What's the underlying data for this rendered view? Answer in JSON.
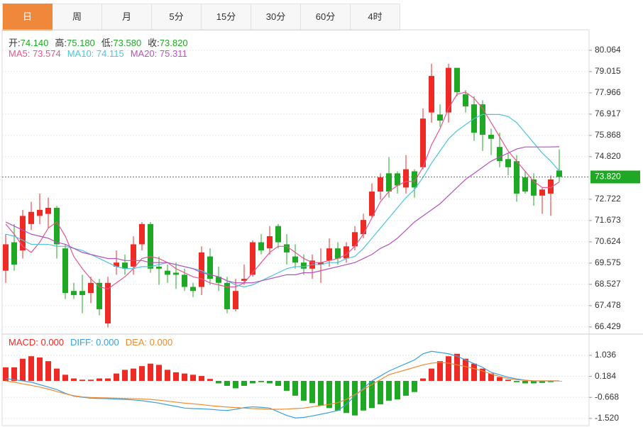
{
  "tabs": [
    "日",
    "周",
    "月",
    "5分",
    "15分",
    "30分",
    "60分",
    "4时"
  ],
  "active_tab": 0,
  "chart_data": [
    {
      "type": "candlestick",
      "info": [
        {
          "label": "开:",
          "value": "74.140"
        },
        {
          "label": "高:",
          "value": "75.180"
        },
        {
          "label": "低:",
          "value": "73.580"
        },
        {
          "label": "收:",
          "value": "73.820"
        }
      ],
      "up_color": "#ee2a24",
      "down_color": "#1fa823",
      "open": [
        69.2,
        70.6,
        70.2,
        71.5,
        71.9,
        72.0,
        72.3,
        70.3,
        68.2,
        68.2,
        68.1,
        68.6,
        66.6,
        69.4,
        69.6,
        69.4,
        70.5,
        71.5,
        69.4,
        69.2,
        69.1,
        69.0,
        68.4,
        68.4,
        69.9,
        68.9,
        68.6,
        67.3,
        68.7,
        69.0,
        70.6,
        70.3,
        71.4,
        70.5,
        69.9,
        69.6,
        69.3,
        69.5,
        69.7,
        70.3,
        69.8,
        70.4,
        71.0,
        71.9,
        73.1,
        74.0,
        74.0,
        73.3,
        74.1,
        74.3,
        77.0,
        76.9,
        77.0,
        79.2,
        77.9,
        77.4,
        77.4,
        75.9,
        75.3,
        74.7,
        74.6,
        73.8,
        73.7,
        72.9,
        73.0,
        74.14
      ],
      "high": [
        71.0,
        71.5,
        72.2,
        72.6,
        73.0,
        72.8,
        72.4,
        70.5,
        68.6,
        69.0,
        68.9,
        68.8,
        68.9,
        70.2,
        70.0,
        70.9,
        71.6,
        71.6,
        69.9,
        69.5,
        69.6,
        69.3,
        68.6,
        70.4,
        70.3,
        69.4,
        68.9,
        68.8,
        69.5,
        70.7,
        71.0,
        71.4,
        71.5,
        71.0,
        70.5,
        70.0,
        70.0,
        70.3,
        70.8,
        70.6,
        70.6,
        71.4,
        72.0,
        73.5,
        74.0,
        74.8,
        74.1,
        74.9,
        74.2,
        77.2,
        79.4,
        77.4,
        79.4,
        79.2,
        78.1,
        77.8,
        77.6,
        76.2,
        76.0,
        75.0,
        74.9,
        74.1,
        74.0,
        73.3,
        73.9,
        75.18
      ],
      "low": [
        68.6,
        69.2,
        69.8,
        71.2,
        71.5,
        71.3,
        69.8,
        67.8,
        67.8,
        67.1,
        67.6,
        67.0,
        66.4,
        69.0,
        69.0,
        69.0,
        70.2,
        69.1,
        68.5,
        68.6,
        68.3,
        68.2,
        67.9,
        68.0,
        68.5,
        68.2,
        67.1,
        67.2,
        68.5,
        68.9,
        70.0,
        70.0,
        70.3,
        69.5,
        69.3,
        69.0,
        68.8,
        68.6,
        69.4,
        69.5,
        69.6,
        70.2,
        70.8,
        71.8,
        72.7,
        72.8,
        73.0,
        73.0,
        72.8,
        74.2,
        76.5,
        76.3,
        76.5,
        77.8,
        77.0,
        75.6,
        75.1,
        74.9,
        74.3,
        73.9,
        72.6,
        73.0,
        72.4,
        72.0,
        71.9,
        73.58
      ],
      "close": [
        70.5,
        69.5,
        71.9,
        72.1,
        72.2,
        72.3,
        70.5,
        68.1,
        68.0,
        68.0,
        68.6,
        67.3,
        68.6,
        69.6,
        69.3,
        70.5,
        71.5,
        69.3,
        69.3,
        69.0,
        69.0,
        68.4,
        68.2,
        70.1,
        68.8,
        68.6,
        67.3,
        68.2,
        68.8,
        70.6,
        70.2,
        70.9,
        70.6,
        70.1,
        69.6,
        69.3,
        69.7,
        69.6,
        70.3,
        69.8,
        70.4,
        71.1,
        71.7,
        73.1,
        73.8,
        73.1,
        73.4,
        74.2,
        73.3,
        76.7,
        78.8,
        76.6,
        79.2,
        78.0,
        77.3,
        76.0,
        75.9,
        75.7,
        74.6,
        74.3,
        73.0,
        73.1,
        72.9,
        73.2,
        73.7,
        73.82
      ],
      "series": [
        {
          "name": "MA5: 73.574",
          "color": "#e8558c",
          "values": [
            71.5,
            71.0,
            70.4,
            70.1,
            70.6,
            71.3,
            71.6,
            70.9,
            69.9,
            69.3,
            68.8,
            68.4,
            68.3,
            68.6,
            68.9,
            69.3,
            69.8,
            69.9,
            69.8,
            69.6,
            69.3,
            69.1,
            68.9,
            68.8,
            68.6,
            68.5,
            68.4,
            68.4,
            68.6,
            69.1,
            69.6,
            70.1,
            70.4,
            70.4,
            70.1,
            69.8,
            69.6,
            69.6,
            69.7,
            69.8,
            70.0,
            70.4,
            71.0,
            71.8,
            72.6,
            73.1,
            73.4,
            73.6,
            73.6,
            74.3,
            75.4,
            76.2,
            77.2,
            77.9,
            78.0,
            77.7,
            77.2,
            76.5,
            75.8,
            75.1,
            74.6,
            74.1,
            73.6,
            73.3,
            73.3,
            73.574
          ]
        },
        {
          "name": "MA10: 74.115",
          "color": "#4cc4dc",
          "values": [
            71.0,
            70.9,
            70.7,
            70.5,
            70.5,
            70.5,
            70.4,
            70.4,
            70.3,
            70.2,
            70.0,
            69.8,
            69.6,
            69.4,
            69.3,
            69.3,
            69.4,
            69.4,
            69.5,
            69.6,
            69.5,
            69.4,
            69.3,
            69.2,
            69.0,
            68.9,
            68.7,
            68.5,
            68.4,
            68.5,
            68.7,
            68.9,
            69.1,
            69.3,
            69.4,
            69.4,
            69.5,
            69.5,
            69.6,
            69.6,
            69.8,
            69.9,
            70.3,
            70.8,
            71.3,
            71.8,
            72.3,
            72.8,
            73.2,
            73.8,
            74.5,
            75.1,
            75.7,
            76.1,
            76.4,
            76.7,
            76.9,
            76.9,
            76.9,
            76.8,
            76.5,
            76.0,
            75.5,
            75.0,
            74.6,
            74.115
          ]
        },
        {
          "name": "MA20: 75.311",
          "color": "#b452bf",
          "values": [
            71.6,
            71.4,
            71.2,
            71.0,
            70.9,
            70.8,
            70.6,
            70.5,
            70.3,
            70.1,
            70.0,
            69.9,
            69.8,
            69.8,
            69.7,
            69.7,
            69.7,
            69.6,
            69.6,
            69.6,
            69.5,
            69.4,
            69.3,
            69.1,
            69.0,
            68.9,
            68.7,
            68.6,
            68.6,
            68.6,
            68.7,
            68.8,
            68.9,
            69.0,
            69.0,
            69.1,
            69.1,
            69.2,
            69.3,
            69.4,
            69.5,
            69.6,
            69.8,
            70.0,
            70.3,
            70.5,
            70.8,
            71.2,
            71.6,
            71.9,
            72.2,
            72.5,
            72.9,
            73.3,
            73.7,
            74.0,
            74.3,
            74.6,
            74.8,
            75.0,
            75.2,
            75.3,
            75.3,
            75.3,
            75.3,
            75.311
          ]
        }
      ],
      "last_price": {
        "value": 73.82,
        "label": "73.820"
      },
      "ylim": [
        66.11,
        81.04
      ],
      "yticks": [
        80.064,
        79.015,
        77.966,
        76.917,
        75.868,
        {
          "value": 74.82,
          "label": "74.820"
        },
        72.722,
        71.673,
        70.624,
        69.575,
        68.527,
        67.478,
        66.429
      ],
      "grid": true
    },
    {
      "type": "macd",
      "up_color": "#ee2a24",
      "down_color": "#1fa823",
      "series": [
        {
          "name": "MACD: 0.000",
          "color": "#ee2a24",
          "values": [
            0.55,
            0.55,
            0.9,
            1.0,
            0.95,
            0.8,
            0.5,
            0.25,
            0.1,
            0.05,
            0.05,
            0.1,
            0.1,
            0.3,
            0.45,
            0.5,
            0.6,
            0.7,
            0.65,
            0.45,
            0.35,
            0.3,
            0.25,
            0.2,
            0.08,
            -0.1,
            -0.2,
            -0.3,
            -0.2,
            -0.1,
            -0.05,
            -0.1,
            -0.2,
            -0.4,
            -0.6,
            -0.8,
            -0.9,
            -1.0,
            -1.1,
            -1.2,
            -1.3,
            -1.4,
            -1.2,
            -1.1,
            -0.95,
            -0.8,
            -0.75,
            -0.6,
            -0.45,
            0.1,
            0.5,
            0.8,
            1.0,
            1.1,
            0.9,
            0.7,
            0.5,
            0.3,
            0.15,
            0.05,
            -0.05,
            -0.1,
            -0.1,
            -0.08,
            -0.05,
            0.0
          ]
        },
        {
          "name": "DIFF: 0.000",
          "color": "#3aa0e0",
          "values": [
            0.1,
            0.05,
            0.0,
            -0.05,
            -0.15,
            -0.25,
            -0.35,
            -0.5,
            -0.62,
            -0.66,
            -0.7,
            -0.71,
            -0.72,
            -0.74,
            -0.75,
            -0.77,
            -0.8,
            -0.85,
            -0.9,
            -0.97,
            -1.03,
            -1.1,
            -1.12,
            -1.13,
            -1.15,
            -1.18,
            -1.2,
            -1.15,
            -1.08,
            -1.05,
            -1.07,
            -1.1,
            -1.25,
            -1.4,
            -1.5,
            -1.48,
            -1.42,
            -1.35,
            -1.28,
            -1.2,
            -0.95,
            -0.6,
            -0.3,
            0.0,
            0.2,
            0.4,
            0.55,
            0.7,
            0.85,
            1.1,
            1.2,
            1.15,
            1.1,
            1.0,
            0.85,
            0.7,
            0.55,
            0.35,
            0.25,
            0.15,
            0.08,
            0.03,
            0.0,
            0.0,
            0.0,
            0.0
          ]
        },
        {
          "name": "DEA: 0.000",
          "color": "#f08a30",
          "values": [
            0.0,
            -0.05,
            -0.12,
            -0.18,
            -0.25,
            -0.33,
            -0.43,
            -0.52,
            -0.6,
            -0.65,
            -0.67,
            -0.68,
            -0.69,
            -0.7,
            -0.71,
            -0.72,
            -0.73,
            -0.75,
            -0.78,
            -0.82,
            -0.86,
            -0.9,
            -0.93,
            -0.96,
            -1.0,
            -1.03,
            -1.06,
            -1.08,
            -1.1,
            -1.12,
            -1.13,
            -1.15,
            -1.15,
            -1.14,
            -1.12,
            -1.1,
            -1.05,
            -1.0,
            -0.95,
            -0.88,
            -0.75,
            -0.55,
            -0.35,
            -0.15,
            0.05,
            0.25,
            0.35,
            0.45,
            0.55,
            0.65,
            0.72,
            0.75,
            0.72,
            0.65,
            0.58,
            0.5,
            0.4,
            0.28,
            0.18,
            0.1,
            0.05,
            0.02,
            0.0,
            0.0,
            0.0,
            0.0
          ]
        }
      ],
      "ylim": [
        -1.81,
        1.84
      ],
      "yticks": [
        1.036,
        0.184,
        -0.668,
        {
          "value": -1.52,
          "label": "-1.520"
        }
      ],
      "grid": true
    }
  ]
}
